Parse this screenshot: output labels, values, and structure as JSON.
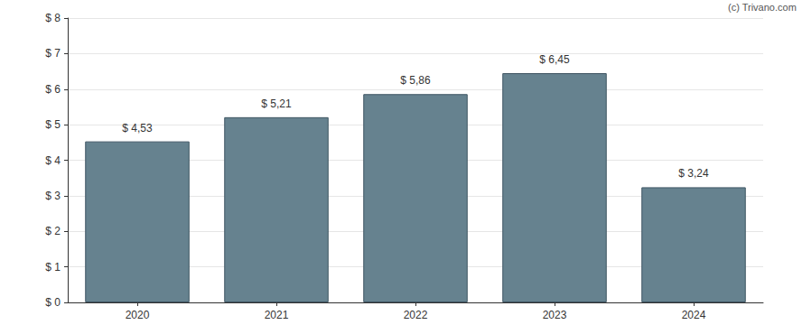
{
  "chart_data": {
    "type": "bar",
    "categories": [
      "2020",
      "2021",
      "2022",
      "2023",
      "2024"
    ],
    "values": [
      4.53,
      5.21,
      5.86,
      6.45,
      3.24
    ],
    "value_labels": [
      "$ 4,53",
      "$ 5,21",
      "$ 5,86",
      "$ 6,45",
      "$ 3,24"
    ],
    "data_labels": true,
    "color": "#66828f",
    "ylim": [
      0,
      8
    ],
    "yticks": [
      {
        "value": 0,
        "label": "$ 0"
      },
      {
        "value": 1,
        "label": "$ 1"
      },
      {
        "value": 2,
        "label": "$ 2"
      },
      {
        "value": 3,
        "label": "$ 3"
      },
      {
        "value": 4,
        "label": "$ 4"
      },
      {
        "value": 5,
        "label": "$ 5"
      },
      {
        "value": 6,
        "label": "$ 6"
      },
      {
        "value": 7,
        "label": "$ 7"
      },
      {
        "value": 8,
        "label": "$ 8"
      }
    ],
    "grid": true,
    "annotations": [
      "(c) Trivano.com"
    ]
  }
}
